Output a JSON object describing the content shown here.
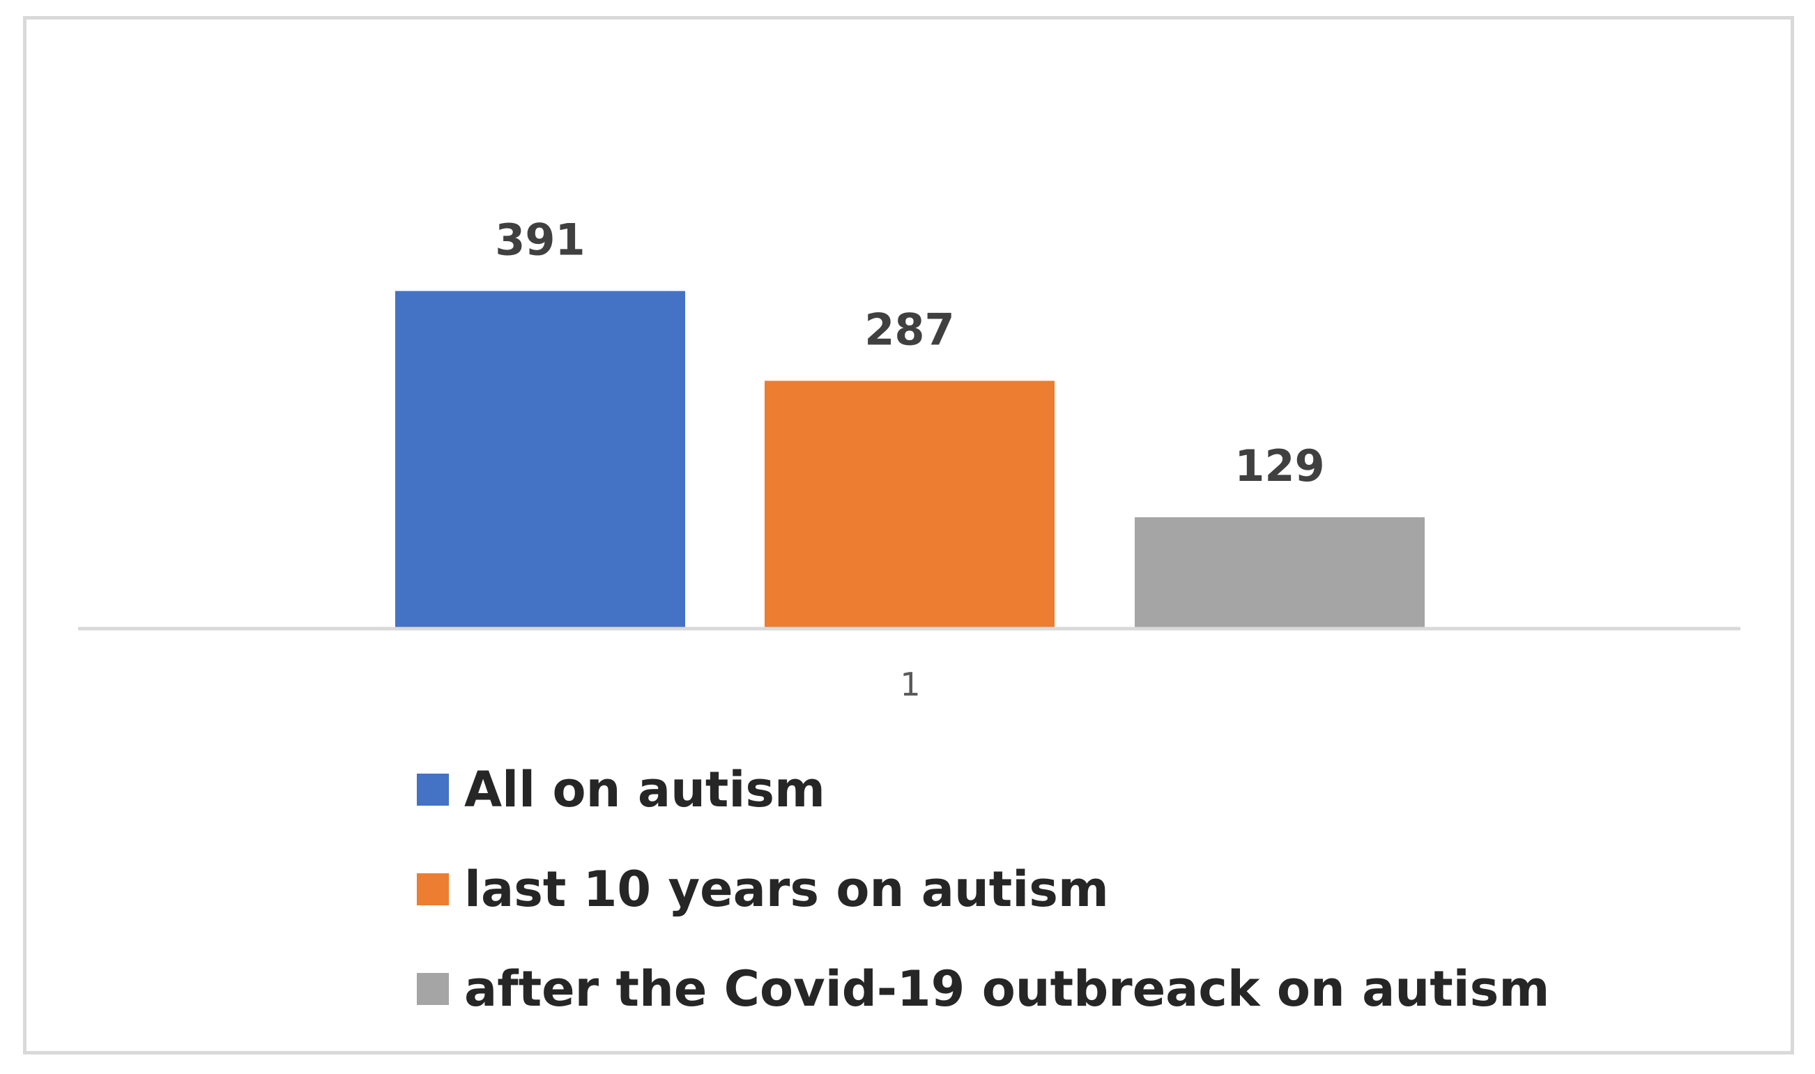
{
  "chart_data": {
    "type": "bar",
    "categories": [
      "1"
    ],
    "series": [
      {
        "name": "All on autism",
        "values": [
          391
        ],
        "color": "#4472C4"
      },
      {
        "name": "last 10 years on autism",
        "values": [
          287
        ],
        "color": "#ED7D31"
      },
      {
        "name": "after the Covid-19 outbreack on autism",
        "values": [
          129
        ],
        "color": "#A5A5A5"
      }
    ],
    "title": "",
    "xlabel": "",
    "ylabel": "",
    "ylim": [
      0,
      400
    ],
    "grid": false,
    "legend_position": "bottom",
    "data_labels": true,
    "colors": {
      "axis": "#d9d9d9",
      "frame": "#d9d9d9"
    }
  }
}
